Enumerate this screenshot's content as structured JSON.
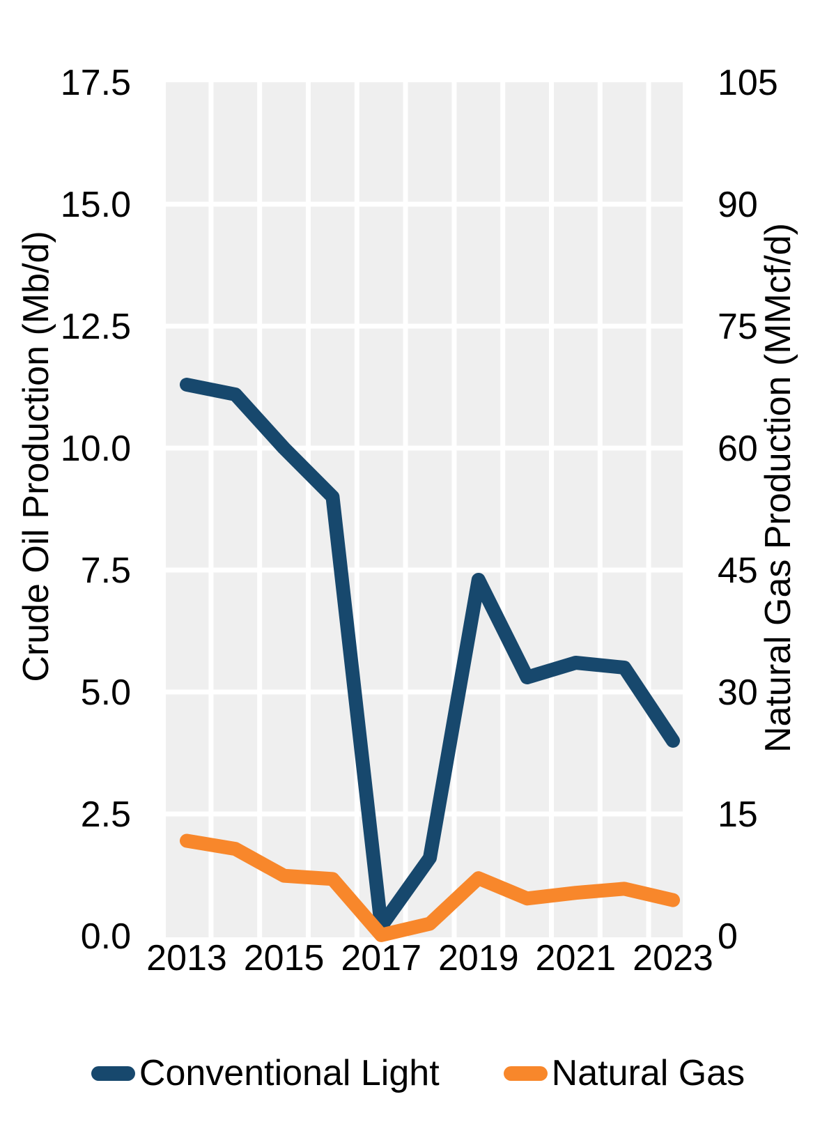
{
  "chart_data": {
    "type": "line",
    "x": [
      2013,
      2014,
      2015,
      2016,
      2017,
      2018,
      2019,
      2020,
      2021,
      2022,
      2023
    ],
    "xticks": [
      2013,
      2015,
      2017,
      2019,
      2021,
      2023
    ],
    "series": [
      {
        "name": "Conventional Light",
        "axis": "left",
        "color": "#17486D",
        "values": [
          11.3,
          11.1,
          10.0,
          9.0,
          0.2,
          1.6,
          7.3,
          5.3,
          5.6,
          5.5,
          4.0
        ]
      },
      {
        "name": "Natural Gas",
        "axis": "right",
        "color": "#F8872B",
        "values": [
          11.7,
          10.7,
          7.4,
          7.0,
          0.1,
          1.5,
          7.1,
          4.6,
          5.3,
          5.8,
          4.4
        ]
      }
    ],
    "title": "",
    "xlabel": "",
    "ylabel_left": "Crude Oil Production (Mb/d)",
    "ylabel_right": "Natural Gas Production (MMcf/d)",
    "ylim_left": [
      0,
      17.5
    ],
    "ylim_right": [
      0,
      105
    ],
    "yticks_left": [
      "17.5",
      "15.0",
      "12.5",
      "10.0",
      "7.5",
      "5.0",
      "2.5",
      "0.0"
    ],
    "yticks_right": [
      "105",
      "90",
      "75",
      "60",
      "45",
      "30",
      "15",
      "0"
    ],
    "grid": "on",
    "gridline_color": "#FFFFFF",
    "panel_color": "#EFEFEF",
    "text_color": "#000000",
    "legend_position": "bottom"
  },
  "legend": {
    "items": [
      {
        "label": "Conventional Light",
        "color": "#17486D"
      },
      {
        "label": "Natural Gas",
        "color": "#F8872B"
      }
    ]
  }
}
